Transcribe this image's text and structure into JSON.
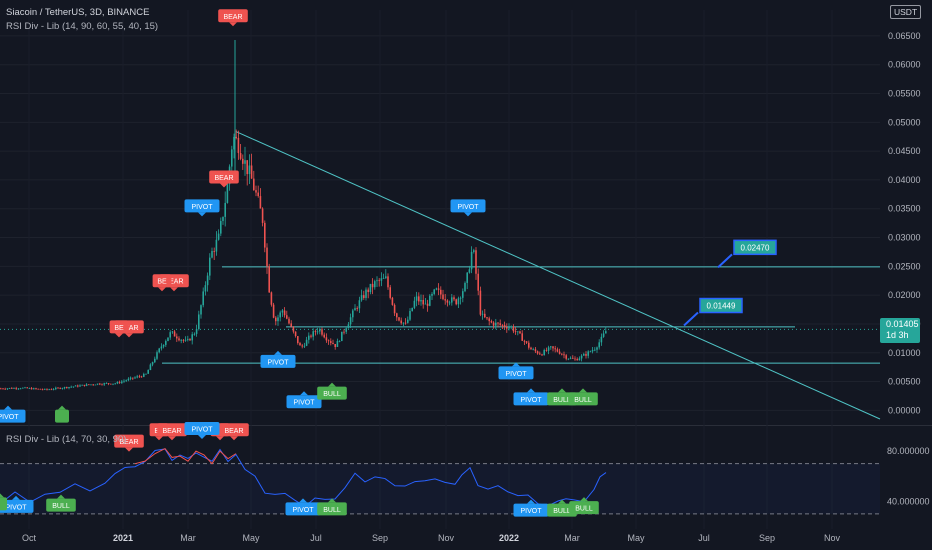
{
  "header": {
    "symbol_line": "Siacoin / TetherUS, 3D, BINANCE",
    "indicator_line": "RSI Div - Lib (14, 90, 60, 55, 40, 15)",
    "rsi_pane_title": "RSI Div - Lib (14, 70, 30, 90)"
  },
  "currency_label": "USDT",
  "last_price": {
    "value": "0.01405",
    "countdown": "1d 3h"
  },
  "colors": {
    "background": "#131722",
    "up": "#26a69a",
    "down": "#ef5350",
    "line": "#4fc3c5",
    "rsi_line": "#2962ff",
    "bear_label": "#ef5350",
    "bull_label": "#4caf50",
    "pivot_label": "#2196f3",
    "callout_fill": "#26a69a",
    "callout_border": "#2962ff"
  },
  "chart_data": [
    {
      "type": "candlestick",
      "title": "Siacoin / TetherUS, 3D, BINANCE",
      "x_axis_labels": [
        "Oct",
        "2021",
        "Mar",
        "May",
        "Jul",
        "Sep",
        "Nov",
        "2022",
        "Mar",
        "May",
        "Jul",
        "Sep",
        "Nov"
      ],
      "y_tick_labels": [
        "0.00000",
        "0.00500",
        "0.01000",
        "0.01500",
        "0.02000",
        "0.02500",
        "0.03000",
        "0.03500",
        "0.04000",
        "0.04500",
        "0.05000",
        "0.05500",
        "0.06000",
        "0.06500"
      ],
      "ylim": [
        -0.0015,
        0.0695
      ],
      "close_path": [
        [
          0,
          0.0038
        ],
        [
          20,
          0.0039
        ],
        [
          45,
          0.0036
        ],
        [
          70,
          0.0041
        ],
        [
          95,
          0.0046
        ],
        [
          115,
          0.0047
        ],
        [
          130,
          0.0055
        ],
        [
          145,
          0.0062
        ],
        [
          152,
          0.0085
        ],
        [
          160,
          0.011
        ],
        [
          170,
          0.0135
        ],
        [
          178,
          0.0126
        ],
        [
          186,
          0.0118
        ],
        [
          195,
          0.0138
        ],
        [
          203,
          0.0205
        ],
        [
          210,
          0.027
        ],
        [
          218,
          0.03
        ],
        [
          226,
          0.038
        ],
        [
          232,
          0.0475
        ],
        [
          238,
          0.0462
        ],
        [
          244,
          0.043
        ],
        [
          250,
          0.0405
        ],
        [
          256,
          0.037
        ],
        [
          262,
          0.033
        ],
        [
          268,
          0.0215
        ],
        [
          274,
          0.0153
        ],
        [
          282,
          0.0175
        ],
        [
          290,
          0.0144
        ],
        [
          300,
          0.0108
        ],
        [
          310,
          0.013
        ],
        [
          318,
          0.0142
        ],
        [
          326,
          0.0125
        ],
        [
          335,
          0.0112
        ],
        [
          345,
          0.0145
        ],
        [
          355,
          0.0178
        ],
        [
          365,
          0.0205
        ],
        [
          375,
          0.0222
        ],
        [
          385,
          0.0228
        ],
        [
          395,
          0.0165
        ],
        [
          405,
          0.0148
        ],
        [
          415,
          0.0195
        ],
        [
          425,
          0.0182
        ],
        [
          435,
          0.0208
        ],
        [
          445,
          0.0195
        ],
        [
          455,
          0.0188
        ],
        [
          465,
          0.0218
        ],
        [
          472,
          0.0285
        ],
        [
          480,
          0.0165
        ],
        [
          490,
          0.0152
        ],
        [
          500,
          0.0148
        ],
        [
          510,
          0.0145
        ],
        [
          520,
          0.0128
        ],
        [
          530,
          0.0106
        ],
        [
          540,
          0.0098
        ],
        [
          550,
          0.0108
        ],
        [
          558,
          0.0102
        ],
        [
          566,
          0.0092
        ],
        [
          574,
          0.0088
        ],
        [
          584,
          0.0096
        ],
        [
          594,
          0.0108
        ],
        [
          600,
          0.0122
        ],
        [
          606,
          0.01405
        ]
      ],
      "annotations": {
        "bear_labels": [
          {
            "text": "BEAR",
            "x": 233,
            "price": 0.0685
          },
          {
            "text": "BEAR",
            "x": 224,
            "price": 0.0405
          },
          {
            "text": "BEAR",
            "x": 174,
            "price": 0.0225
          },
          {
            "text": "BE",
            "x": 162,
            "price": 0.0225
          },
          {
            "text": "BEAR",
            "x": 129,
            "price": 0.0145
          },
          {
            "text": "BE",
            "x": 119,
            "price": 0.0145
          }
        ],
        "pivot_labels": [
          {
            "text": "PIVOT",
            "x": 202,
            "price": 0.0355
          },
          {
            "text": "PIVOT",
            "x": 468,
            "price": 0.0355
          },
          {
            "text": "PIVOT",
            "x": 278,
            "price": 0.0085
          },
          {
            "text": "PIVOT",
            "x": 304,
            "price": 0.0015
          },
          {
            "text": "PIVOT",
            "x": 516,
            "price": 0.0065
          },
          {
            "text": "PIVOT",
            "x": 531,
            "price": 0.002
          },
          {
            "text": "PIVOT",
            "x": 8,
            "price": -0.001
          }
        ],
        "bull_labels": [
          {
            "text": "BULL",
            "x": 332,
            "price": 0.003
          },
          {
            "text": "BULL",
            "x": 562,
            "price": 0.002
          },
          {
            "text": "BULL",
            "x": 583,
            "price": 0.002
          },
          {
            "text": "",
            "x": 62,
            "price": -0.001
          }
        ],
        "price_callouts": [
          {
            "text": "0.02470",
            "x": 754,
            "price": 0.0283
          },
          {
            "text": "0.01449",
            "x": 720,
            "price": 0.0182
          }
        ],
        "trendline": {
          "from": [
            236,
            0.0484
          ],
          "to": [
            880,
            -0.0015
          ]
        },
        "horizontal_levels": [
          {
            "price": 0.0249,
            "from": 222,
            "to": 880
          },
          {
            "price": 0.0145,
            "from": 286,
            "to": 795
          },
          {
            "price": 0.0082,
            "from": 162,
            "to": 880
          }
        ]
      }
    },
    {
      "type": "line",
      "title": "RSI Div - Lib (14, 70, 30, 90)",
      "y_tick_labels": [
        "40.000000",
        "80.000000"
      ],
      "ylim": [
        18,
        100
      ],
      "reference_levels": [
        70,
        30
      ],
      "series": [
        {
          "values": [
            [
              0,
              38
            ],
            [
              15,
              45
            ],
            [
              30,
              40
            ],
            [
              45,
              48
            ],
            [
              60,
              46
            ],
            [
              75,
              52
            ],
            [
              90,
              50
            ],
            [
              105,
              56
            ],
            [
              115,
              60
            ],
            [
              125,
              66
            ],
            [
              135,
              70
            ],
            [
              145,
              72
            ],
            [
              155,
              78
            ],
            [
              165,
              82
            ],
            [
              172,
              75
            ],
            [
              180,
              76
            ],
            [
              188,
              72
            ],
            [
              196,
              80
            ],
            [
              204,
              77
            ],
            [
              212,
              70
            ],
            [
              220,
              80
            ],
            [
              228,
              74
            ],
            [
              236,
              78
            ],
            [
              245,
              63
            ],
            [
              255,
              60
            ],
            [
              265,
              49
            ],
            [
              275,
              45
            ],
            [
              285,
              44
            ],
            [
              295,
              42
            ],
            [
              305,
              38
            ],
            [
              315,
              41
            ],
            [
              325,
              40
            ],
            [
              335,
              44
            ],
            [
              345,
              52
            ],
            [
              355,
              60
            ],
            [
              365,
              55
            ],
            [
              375,
              62
            ],
            [
              385,
              58
            ],
            [
              395,
              50
            ],
            [
              405,
              53
            ],
            [
              415,
              58
            ],
            [
              425,
              55
            ],
            [
              435,
              56
            ],
            [
              445,
              57
            ],
            [
              455,
              55
            ],
            [
              462,
              59
            ],
            [
              470,
              66
            ],
            [
              478,
              55
            ],
            [
              488,
              50
            ],
            [
              498,
              50
            ],
            [
              508,
              48
            ],
            [
              518,
              47
            ],
            [
              528,
              44
            ],
            [
              538,
              36
            ],
            [
              548,
              38
            ],
            [
              558,
              42
            ],
            [
              566,
              40
            ],
            [
              574,
              40
            ],
            [
              584,
              42
            ],
            [
              594,
              50
            ],
            [
              600,
              57
            ],
            [
              606,
              63
            ]
          ]
        }
      ],
      "annotations": {
        "bear_labels": [
          {
            "text": "BEAR",
            "x": 129,
            "value": 88
          },
          {
            "text": "BE",
            "x": 159,
            "value": 97
          },
          {
            "text": "BEAR",
            "x": 172,
            "value": 97
          },
          {
            "text": "BE",
            "x": 220,
            "value": 97
          },
          {
            "text": "BEAR",
            "x": 234,
            "value": 97
          }
        ],
        "pivot_labels": [
          {
            "text": "PIVOT",
            "x": 202,
            "value": 98
          },
          {
            "text": "PIVOT",
            "x": 16,
            "value": 36
          },
          {
            "text": "PIVOT",
            "x": 303,
            "value": 34
          },
          {
            "text": "PIVOT",
            "x": 531,
            "value": 33
          }
        ],
        "bull_labels": [
          {
            "text": "BULL",
            "x": 61,
            "value": 37
          },
          {
            "text": "BULL",
            "x": 332,
            "value": 34
          },
          {
            "text": "BULL",
            "x": 562,
            "value": 33
          },
          {
            "text": "BULL",
            "x": 584,
            "value": 35
          },
          {
            "text": "",
            "x": 0,
            "value": 38
          }
        ]
      }
    }
  ]
}
